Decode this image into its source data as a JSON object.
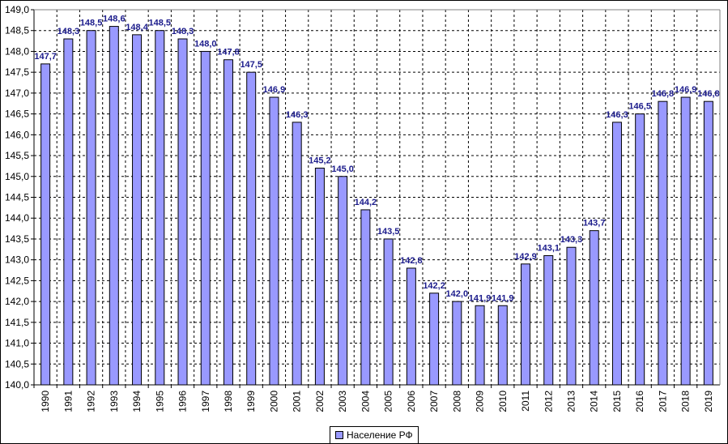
{
  "chart_data": {
    "type": "bar",
    "categories": [
      "1990",
      "1991",
      "1992",
      "1993",
      "1994",
      "1995",
      "1996",
      "1997",
      "1998",
      "1999",
      "2000",
      "2001",
      "2002",
      "2003",
      "2004",
      "2005",
      "2006",
      "2007",
      "2008",
      "2009",
      "2010",
      "2011",
      "2012",
      "2013",
      "2014",
      "2015",
      "2016",
      "2017",
      "2018",
      "2019"
    ],
    "series": [
      {
        "name": "Население РФ",
        "values": [
          147.7,
          148.3,
          148.5,
          148.6,
          148.4,
          148.5,
          148.3,
          148.0,
          147.8,
          147.5,
          146.9,
          146.3,
          145.2,
          145.0,
          144.2,
          143.5,
          142.8,
          142.2,
          142.0,
          141.9,
          141.9,
          142.9,
          143.1,
          143.3,
          143.7,
          146.3,
          146.5,
          146.8,
          146.9,
          146.8
        ],
        "labels": [
          "147,7",
          "148,3",
          "148,5",
          "148,6",
          "148,4",
          "148,5",
          "148,3",
          "148,0",
          "147,8",
          "147,5",
          "146,9",
          "146,3",
          "145,2",
          "145,0",
          "144,2",
          "143,5",
          "142,8",
          "142,2",
          "142,0",
          "141,9",
          "141,9",
          "142,9",
          "143,1",
          "143,3",
          "143,7",
          "146,3",
          "146,5",
          "146,8",
          "146,9",
          "146,8"
        ],
        "color": "#9999ff"
      }
    ],
    "y_ticks": [
      "140,0",
      "140,5",
      "141,0",
      "141,5",
      "142,0",
      "142,5",
      "143,0",
      "143,5",
      "144,0",
      "144,5",
      "145,0",
      "145,5",
      "146,0",
      "146,5",
      "147,0",
      "147,5",
      "148,0",
      "148,5",
      "149,0"
    ],
    "title": "",
    "xlabel": "",
    "ylabel": "",
    "ylim": [
      140,
      149
    ],
    "grid": true,
    "legend_position": "bottom"
  },
  "legend": {
    "label": "Население РФ"
  }
}
